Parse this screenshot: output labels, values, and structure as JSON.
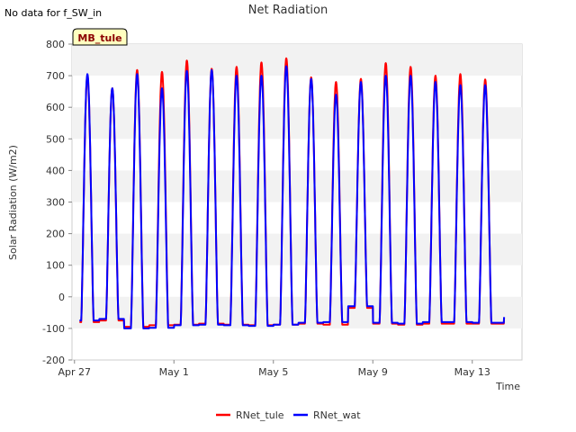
{
  "header": {
    "no_data_note": "No data for f_SW_in"
  },
  "badge": {
    "label": "MB_tule"
  },
  "colors": {
    "rnet_tule": "#ff0000",
    "rnet_wat": "#0000ff",
    "band": "#f2f2f2",
    "grid": "#dddddd"
  },
  "chart_data": {
    "type": "line",
    "title": "Net Radiation",
    "xlabel": "Time",
    "ylabel": "Solar Radiation (W/m2)",
    "ylim": [
      -200,
      800
    ],
    "xlim_days": [
      -0.1,
      18.0
    ],
    "x_unit": "days since Apr 27",
    "x_ticks": [
      {
        "label": "Apr 27",
        "day": 0
      },
      {
        "label": "May 1",
        "day": 4
      },
      {
        "label": "May 5",
        "day": 8
      },
      {
        "label": "May 9",
        "day": 12
      },
      {
        "label": "May 13",
        "day": 16
      }
    ],
    "y_ticks": [
      -200,
      -100,
      0,
      100,
      200,
      300,
      400,
      500,
      600,
      700,
      800
    ],
    "legend": {
      "placement": "bottom-center"
    },
    "series": [
      {
        "name": "RNet_tule",
        "daily_min": [
          -80,
          -75,
          -95,
          -90,
          -88,
          -85,
          -88,
          -90,
          -88,
          -85,
          -88,
          -35,
          -85,
          -88,
          -85,
          -85,
          -85
        ],
        "daily_peak": [
          700,
          660,
          718,
          712,
          748,
          722,
          728,
          742,
          755,
          695,
          680,
          690,
          740,
          728,
          700,
          705,
          688
        ]
      },
      {
        "name": "RNet_wat",
        "daily_min": [
          -75,
          -70,
          -100,
          -98,
          -90,
          -88,
          -90,
          -92,
          -88,
          -82,
          -80,
          -30,
          -82,
          -85,
          -80,
          -80,
          -82
        ],
        "daily_peak": [
          705,
          660,
          705,
          660,
          715,
          718,
          700,
          700,
          730,
          690,
          640,
          680,
          700,
          700,
          680,
          670,
          670
        ]
      }
    ]
  },
  "legend_labels": [
    "RNet_tule",
    "RNet_wat"
  ]
}
